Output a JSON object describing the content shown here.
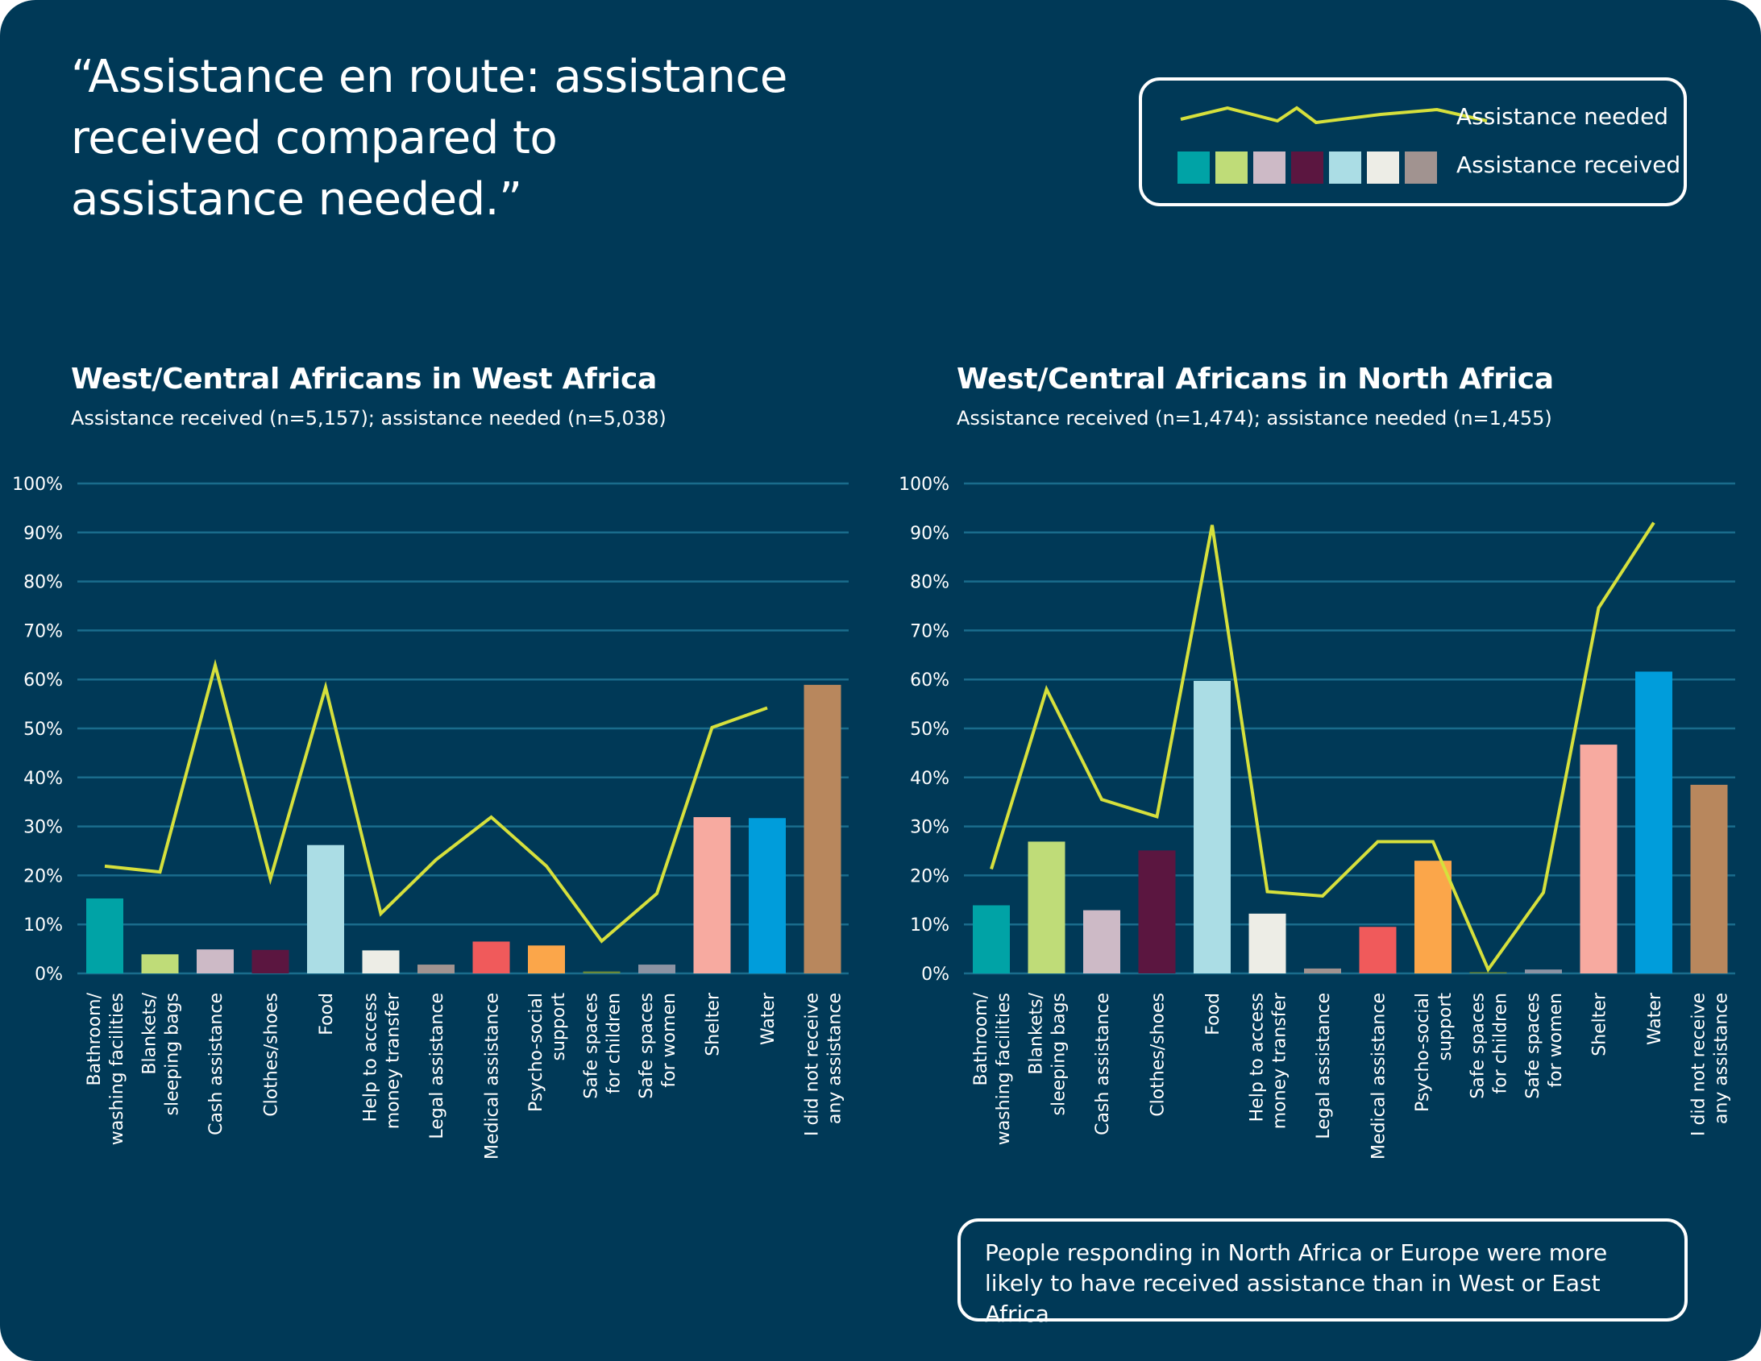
{
  "header": {
    "title": "“Assistance en route: assistance received compared to assistance needed.”"
  },
  "legend": {
    "needed_label": "Assistance needed",
    "received_label": "Assistance received",
    "line_color": "#D6E03C",
    "swatch_colors": [
      "#00A3A6",
      "#BFDC78",
      "#CDBAC6",
      "#5B1640",
      "#ABDDE5",
      "#EDEDE6",
      "#A19390"
    ]
  },
  "note": {
    "text": "People responding in North Africa or Europe were more likely to have received assistance than in West or East Africa."
  },
  "chart_data": [
    {
      "type": "bar",
      "title": "West/Central Africans in West Africa",
      "subtitle": "Assistance received (n=5,157); assistance needed (n=5,038)",
      "categories": [
        [
          "Bathroom/",
          "washing facilities"
        ],
        [
          "Blankets/",
          "sleeping bags"
        ],
        [
          "Cash assistance"
        ],
        [
          "Clothes/shoes"
        ],
        [
          "Food"
        ],
        [
          "Help to access",
          "money transfer"
        ],
        [
          "Legal assistance"
        ],
        [
          "Medical assistance"
        ],
        [
          "Psycho-social",
          "support"
        ],
        [
          "Safe spaces",
          "for children"
        ],
        [
          "Safe spaces",
          "for women"
        ],
        [
          "Shelter"
        ],
        [
          "Water"
        ],
        [
          "I did not receive",
          "any assistance"
        ]
      ],
      "yticks": [
        "0%",
        "10%",
        "20%",
        "30%",
        "40%",
        "50%",
        "60%",
        "70%",
        "80%",
        "90%",
        "100%"
      ],
      "ylim": [
        0,
        100
      ],
      "grid": true,
      "series": [
        {
          "name": "Assistance received",
          "kind": "bar",
          "values": [
            15.3,
            3.9,
            4.9,
            4.8,
            26.2,
            4.7,
            1.8,
            6.5,
            5.7,
            0.4,
            1.8,
            31.9,
            31.7,
            58.9
          ]
        },
        {
          "name": "Assistance needed",
          "kind": "line",
          "values": [
            21.9,
            20.7,
            62.9,
            19.3,
            58.4,
            12.2,
            23.2,
            31.9,
            21.9,
            6.6,
            16.3,
            50.2,
            54.2,
            null
          ]
        }
      ],
      "bar_colors": [
        "#00A3A6",
        "#BFDC78",
        "#CDBAC6",
        "#5B1640",
        "#ABDDE5",
        "#EDEDE6",
        "#A19390",
        "#F05A5B",
        "#FBA64A",
        "#6A8A3A",
        "#8C93A3",
        "#F7AAA0",
        "#009DDB",
        "#B8875D"
      ]
    },
    {
      "type": "bar",
      "title": "West/Central Africans in North Africa",
      "subtitle": "Assistance received (n=1,474); assistance needed (n=1,455)",
      "categories": [
        [
          "Bathroom/",
          "washing facilities"
        ],
        [
          "Blankets/",
          "sleeping bags"
        ],
        [
          "Cash assistance"
        ],
        [
          "Clothes/shoes"
        ],
        [
          "Food"
        ],
        [
          "Help to access",
          "money transfer"
        ],
        [
          "Legal assistance"
        ],
        [
          "Medical assistance"
        ],
        [
          "Psycho-social",
          "support"
        ],
        [
          "Safe spaces",
          "for children"
        ],
        [
          "Safe spaces",
          "for women"
        ],
        [
          "Shelter"
        ],
        [
          "Water"
        ],
        [
          "I did not receive",
          "any assistance"
        ]
      ],
      "yticks": [
        "0%",
        "10%",
        "20%",
        "30%",
        "40%",
        "50%",
        "60%",
        "70%",
        "80%",
        "90%",
        "100%"
      ],
      "ylim": [
        0,
        100
      ],
      "grid": true,
      "series": [
        {
          "name": "Assistance received",
          "kind": "bar",
          "values": [
            13.9,
            26.9,
            12.9,
            25.1,
            59.7,
            12.2,
            1.0,
            9.5,
            23.0,
            0.2,
            0.8,
            46.7,
            61.6,
            38.5
          ]
        },
        {
          "name": "Assistance needed",
          "kind": "line",
          "values": [
            21.3,
            58.0,
            35.5,
            32.0,
            91.5,
            16.7,
            15.8,
            26.9,
            26.9,
            0.8,
            16.5,
            74.6,
            92.0,
            null
          ]
        }
      ],
      "bar_colors": [
        "#00A3A6",
        "#BFDC78",
        "#CDBAC6",
        "#5B1640",
        "#ABDDE5",
        "#EDEDE6",
        "#A19390",
        "#F05A5B",
        "#FBA64A",
        "#6A8A3A",
        "#8C93A3",
        "#F7AAA0",
        "#009DDB",
        "#B8875D"
      ]
    }
  ]
}
